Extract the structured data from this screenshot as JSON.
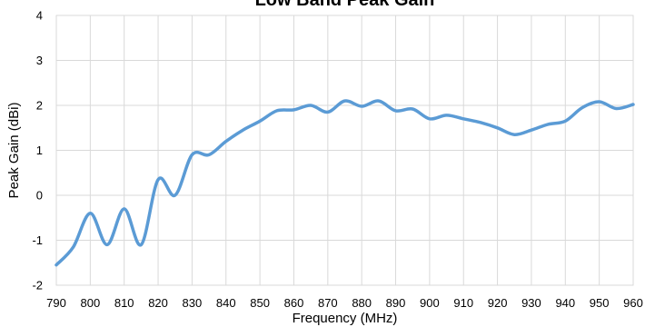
{
  "chart_data": {
    "type": "line",
    "title": "Low Band Peak Gain",
    "xlabel": "Frequency (MHz)",
    "ylabel": "Peak Gain (dBi)",
    "xlim": [
      790,
      960
    ],
    "ylim": [
      -2,
      4
    ],
    "x_ticks": [
      "790",
      "800",
      "810",
      "820",
      "830",
      "840",
      "850",
      "860",
      "870",
      "880",
      "890",
      "900",
      "910",
      "920",
      "930",
      "940",
      "950",
      "960"
    ],
    "y_ticks": [
      "-2",
      "-1",
      "0",
      "1",
      "2",
      "3",
      "4"
    ],
    "grid": true,
    "legend": "none",
    "colors": {
      "series": "#5b9bd5",
      "grid": "#d9d9d9"
    },
    "series": [
      {
        "x": [
          790,
          795,
          800,
          805,
          810,
          815,
          820,
          825,
          830,
          835,
          840,
          845,
          850,
          855,
          860,
          865,
          870,
          875,
          880,
          885,
          890,
          895,
          900,
          905,
          910,
          915,
          920,
          925,
          930,
          935,
          940,
          945,
          950,
          955,
          960
        ],
        "values": [
          -1.55,
          -1.15,
          -0.4,
          -1.1,
          -0.3,
          -1.1,
          0.35,
          0.0,
          0.9,
          0.9,
          1.2,
          1.45,
          1.65,
          1.88,
          1.9,
          2.0,
          1.85,
          2.1,
          1.98,
          2.1,
          1.88,
          1.92,
          1.7,
          1.78,
          1.7,
          1.62,
          1.5,
          1.35,
          1.45,
          1.58,
          1.65,
          1.95,
          2.08,
          1.93,
          2.02
        ]
      }
    ]
  }
}
